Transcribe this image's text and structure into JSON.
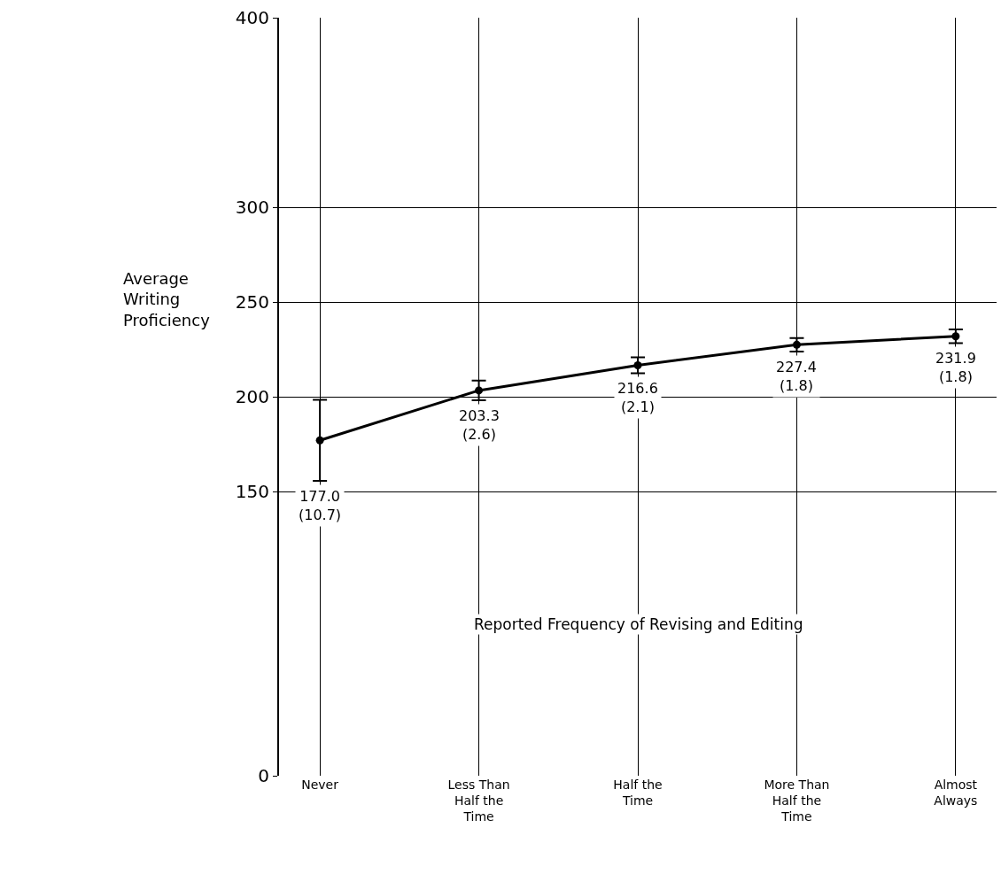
{
  "chart_data": {
    "type": "line",
    "xlabel": "Reported Frequency of Revising and Editing",
    "ylabel": "Average Writing Proficiency",
    "categories": [
      "Never",
      "Less Than Half the Time",
      "Half the Time",
      "More Than Half the Time",
      "Almost Always"
    ],
    "values": [
      177.0,
      203.3,
      216.6,
      227.4,
      231.9
    ],
    "errors": [
      21.4,
      5.2,
      4.2,
      3.6,
      3.6
    ],
    "value_labels": [
      "177.0 (10.7)",
      "203.3 (2.6)",
      "216.6 (2.1)",
      "227.4 (1.8)",
      "231.9 (1.8)"
    ],
    "color": "#000000",
    "marker": "circle",
    "line_style": "solid",
    "ylim": [
      0,
      400
    ],
    "yticks": [
      0,
      150,
      200,
      250,
      300,
      400
    ],
    "grid": true,
    "legend": false
  }
}
